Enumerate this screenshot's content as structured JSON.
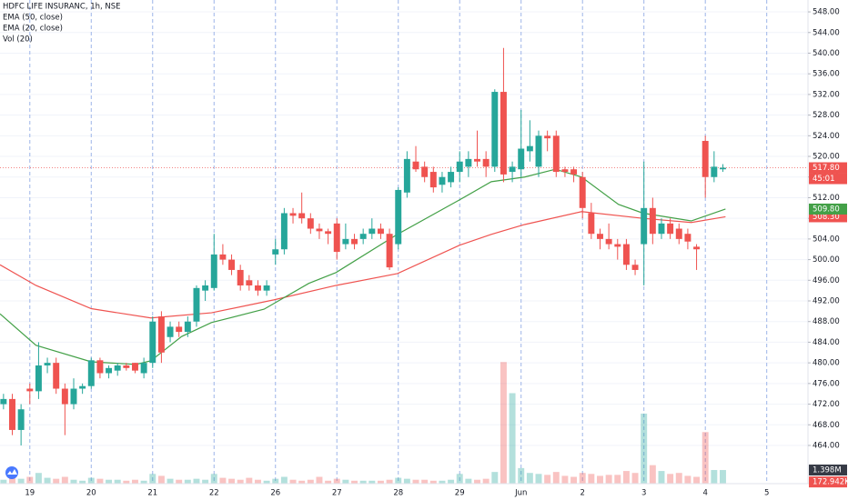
{
  "header": {
    "symbol": "HDFC LIFE INSURANC, 1h, NSE",
    "volume_name": "Vol (20)"
  },
  "chart_data": {
    "type": "candlestick",
    "x": [
      -3,
      -2,
      -1,
      0,
      1,
      2,
      3,
      4,
      5,
      6,
      7,
      8,
      9,
      10,
      11,
      12,
      13,
      14,
      15,
      16,
      17,
      18,
      19,
      20,
      21,
      22,
      23,
      24,
      25,
      26,
      27,
      28,
      29,
      30,
      31,
      32,
      33,
      34,
      35,
      36,
      37,
      38,
      39,
      40,
      41,
      42,
      43,
      44,
      45,
      46,
      47,
      48,
      49,
      50,
      51,
      52,
      53,
      54,
      55,
      56,
      57,
      58,
      59,
      60,
      61,
      62,
      63,
      64,
      65,
      66,
      67,
      68,
      69,
      70,
      71,
      72,
      73,
      74,
      75,
      76,
      77,
      78,
      79
    ],
    "open": [
      472,
      473,
      467,
      475,
      474.5,
      479.5,
      480,
      475,
      472,
      475,
      475.5,
      480.5,
      478,
      478.5,
      479.5,
      480,
      478,
      480,
      489,
      485,
      487,
      486,
      488,
      494,
      494.5,
      501,
      500,
      498,
      496,
      495,
      494,
      501,
      502,
      509,
      509,
      508,
      506,
      505.5,
      507,
      503,
      504,
      504,
      505,
      506,
      505,
      503,
      513,
      519,
      518,
      517,
      514.5,
      515,
      517,
      518,
      519.5,
      519.5,
      518,
      532.5,
      517,
      517.5,
      521,
      518,
      524,
      524,
      517.5,
      517.5,
      516,
      509,
      505,
      504,
      503,
      503,
      499,
      503,
      510,
      505,
      507,
      506,
      505,
      502.5,
      523,
      516,
      517.5
    ],
    "high": [
      474,
      474,
      472,
      476,
      484,
      481,
      481,
      476,
      477,
      476,
      481,
      481,
      479.5,
      480,
      480,
      480,
      481,
      489,
      490,
      488,
      488,
      489,
      495,
      496,
      505,
      503,
      501,
      499,
      497,
      496,
      496,
      504,
      510,
      510,
      513,
      509,
      507,
      506,
      508,
      507,
      505,
      506,
      508,
      507,
      506,
      514,
      521,
      522,
      519,
      518,
      517,
      518,
      521,
      521,
      525,
      521,
      533,
      541,
      519,
      529,
      527,
      525,
      525,
      525,
      518,
      518,
      517,
      511,
      506,
      507,
      504,
      504,
      500,
      519,
      512,
      508,
      508,
      507,
      506,
      503,
      524,
      521,
      518.5
    ],
    "low": [
      471,
      466,
      464,
      472,
      473,
      478,
      474,
      466,
      471,
      474,
      475,
      477,
      477,
      477.5,
      478.5,
      478,
      477,
      479,
      480,
      484,
      485,
      485,
      487,
      492,
      494,
      499,
      497,
      494,
      494,
      493,
      493,
      499,
      501,
      507,
      507,
      505,
      504,
      503,
      500,
      502,
      502,
      503,
      504,
      504,
      498,
      502,
      512,
      517,
      515,
      513,
      513,
      514,
      515,
      516,
      518,
      516,
      517,
      515,
      515,
      516,
      519,
      516,
      521,
      516,
      516,
      515,
      508,
      504,
      502,
      502,
      500,
      498,
      497,
      495,
      503,
      504,
      504,
      503,
      502,
      498,
      512,
      515,
      517
    ],
    "close": [
      473,
      467,
      471,
      474.5,
      479.5,
      480,
      475,
      472,
      475,
      475.5,
      480.5,
      478,
      479,
      479.5,
      479,
      478.5,
      480,
      488,
      482,
      487,
      486,
      488,
      494.5,
      495,
      501,
      500,
      498,
      495,
      495,
      494,
      495,
      502,
      509,
      508.5,
      508,
      506,
      505.5,
      505,
      501.5,
      504,
      503,
      505,
      506,
      505,
      498.5,
      513.5,
      519.5,
      517.5,
      516,
      514,
      516,
      517,
      519,
      519.5,
      519,
      518,
      532.5,
      516.5,
      518,
      521.5,
      522,
      524,
      523.5,
      517,
      517,
      516.5,
      510,
      505,
      504,
      503,
      502.5,
      499,
      498,
      510,
      505,
      507,
      505,
      504,
      503.5,
      502,
      516,
      518,
      517.8
    ],
    "volume": [
      0.4,
      0.6,
      0.5,
      0.7,
      1.1,
      0.6,
      0.5,
      0.7,
      0.4,
      0.3,
      0.6,
      0.5,
      0.4,
      0.4,
      0.3,
      0.4,
      0.3,
      1.0,
      0.8,
      0.5,
      0.4,
      0.4,
      0.5,
      0.4,
      1.0,
      0.6,
      0.5,
      0.4,
      0.6,
      0.4,
      0.3,
      0.5,
      0.7,
      0.4,
      0.3,
      0.4,
      0.7,
      0.3,
      0.5,
      0.4,
      0.3,
      0.3,
      0.3,
      0.3,
      0.4,
      0.6,
      0.5,
      0.4,
      0.4,
      0.3,
      0.3,
      0.4,
      1.0,
      0.5,
      0.4,
      0.5,
      1.2,
      12.5,
      9.3,
      1.6,
      1.1,
      1.0,
      0.9,
      1.2,
      0.8,
      0.7,
      1.1,
      1.0,
      0.8,
      0.9,
      0.9,
      1.3,
      1.1,
      7.2,
      1.9,
      1.3,
      1.0,
      1.1,
      0.8,
      0.7,
      5.3,
      1.4,
      1.398
    ],
    "up_color": "#26a69a",
    "down_color": "#ef5350",
    "series": [
      {
        "name": "EMA (50, close)",
        "color": "#ef5350",
        "x": [
          -3.4,
          0.7,
          7,
          13.8,
          20.7,
          27.8,
          34.9,
          41.9,
          49,
          52.6,
          56.4,
          62.9,
          69.9,
          75.4,
          79.3
        ],
        "values": [
          499,
          495,
          490.5,
          488.7,
          489.7,
          492.2,
          495,
          497.3,
          502.8,
          504.9,
          506.8,
          509.3,
          508,
          507.2,
          508.3
        ],
        "last": {
          "value": 508.3,
          "label": "508.30"
        }
      },
      {
        "name": "EMA (20, close)",
        "color": "#43a047",
        "x": [
          -3.4,
          0.7,
          7,
          12.1,
          13.8,
          17.3,
          20.7,
          26.7,
          31.8,
          34.9,
          41.9,
          49,
          52.6,
          56.4,
          59.9,
          62.9,
          67.1,
          69.9,
          75.4,
          79.3
        ],
        "values": [
          489.5,
          483.4,
          480.2,
          479.7,
          480.4,
          485.1,
          487.8,
          490.4,
          495.4,
          497.5,
          504.9,
          511.6,
          515.1,
          516,
          517.5,
          516,
          510.7,
          509,
          507.5,
          509.8
        ],
        "last": {
          "value": 509.8,
          "label": "509.80"
        }
      }
    ],
    "last_price": {
      "value": 517.8,
      "label": "517.80"
    },
    "countdown": "45:01",
    "volume_markers": [
      {
        "value": 1.398,
        "label": "1.398M",
        "color": "#363a45"
      },
      {
        "value": 0.172942,
        "label": "172.942K",
        "color": "#ef5350"
      }
    ],
    "xlim": [
      -3.4,
      88.7
    ],
    "ylim": [
      456.6,
      550.3
    ],
    "yticks": [
      {
        "value": 548,
        "label": "548.00"
      },
      {
        "value": 544,
        "label": "544.00"
      },
      {
        "value": 540,
        "label": "540.00"
      },
      {
        "value": 536,
        "label": "536.00"
      },
      {
        "value": 532,
        "label": "532.00"
      },
      {
        "value": 528,
        "label": "528.00"
      },
      {
        "value": 524,
        "label": "524.00"
      },
      {
        "value": 520,
        "label": "520.00"
      },
      {
        "value": 516,
        "label": "516.00"
      },
      {
        "value": 512,
        "label": "512.00"
      },
      {
        "value": 508,
        "label": "508.00"
      },
      {
        "value": 504,
        "label": "504.00"
      },
      {
        "value": 500,
        "label": "500.00"
      },
      {
        "value": 496,
        "label": "496.00"
      },
      {
        "value": 492,
        "label": "492.00"
      },
      {
        "value": 488,
        "label": "488.00"
      },
      {
        "value": 484,
        "label": "484.00"
      },
      {
        "value": 480,
        "label": "480.00"
      },
      {
        "value": 476,
        "label": "476.00"
      },
      {
        "value": 472,
        "label": "472.00"
      },
      {
        "value": 468,
        "label": "468.00"
      },
      {
        "value": 464,
        "label": "464.00"
      }
    ],
    "xticks": [
      {
        "value": 0,
        "label": "19"
      },
      {
        "value": 7,
        "label": "20"
      },
      {
        "value": 14,
        "label": "21"
      },
      {
        "value": 21,
        "label": "22"
      },
      {
        "value": 28,
        "label": "26"
      },
      {
        "value": 35,
        "label": "27"
      },
      {
        "value": 42,
        "label": "28"
      },
      {
        "value": 49,
        "label": "29"
      },
      {
        "value": 56,
        "label": "Jun"
      },
      {
        "value": 63,
        "label": "2"
      },
      {
        "value": 70,
        "label": "3"
      },
      {
        "value": 77,
        "label": "4"
      },
      {
        "value": 84,
        "label": "5"
      }
    ],
    "grid": true
  }
}
